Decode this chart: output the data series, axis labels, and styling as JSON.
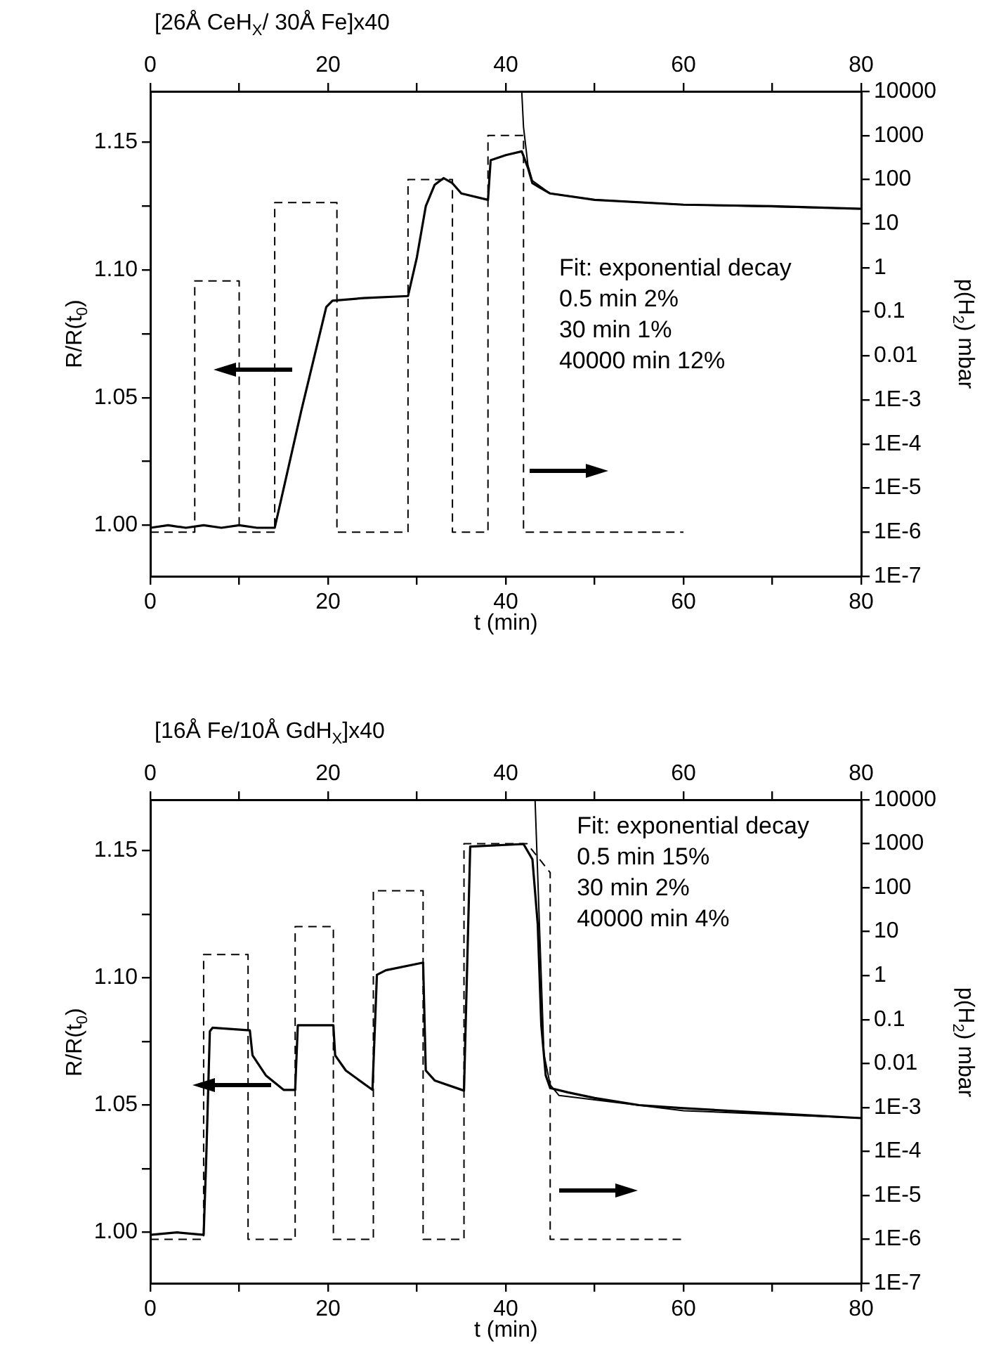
{
  "chart_data": [
    {
      "type": "line",
      "title": "[26Å CeH$_{X}$/ 30Å Fe]x40",
      "xlabel": "t (min)",
      "ylabel": "R/R(t$_{0}$)",
      "y2label": "p(H$_{2}$) mbar",
      "annotations": [
        "Fit: exponential decay",
        "0.5 min 2%",
        "30 min 1%",
        "40000 min 12%"
      ],
      "xlim": [
        0,
        80
      ],
      "xticks": [
        0,
        {
          "value": 10,
          "label": null
        },
        20,
        {
          "value": 30,
          "label": null
        },
        40,
        {
          "value": 50,
          "label": null
        },
        60,
        {
          "value": 70,
          "label": null
        },
        80
      ],
      "x2lim": [
        0,
        80
      ],
      "x2ticks": [
        0,
        {
          "value": 10,
          "label": null
        },
        20,
        {
          "value": 30,
          "label": null
        },
        40,
        {
          "value": 50,
          "label": null
        },
        60,
        {
          "value": 70,
          "label": null
        },
        80
      ],
      "ylim": [
        0.98,
        1.17
      ],
      "yticks": [
        {
          "value": 1,
          "label": "1.00"
        },
        {
          "value": 1.025,
          "label": null
        },
        {
          "value": 1.05,
          "label": "1.05"
        },
        {
          "value": 1.075,
          "label": null
        },
        {
          "value": 1.1,
          "label": "1.10"
        },
        {
          "value": 1.125,
          "label": null
        },
        {
          "value": 1.15,
          "label": "1.15"
        }
      ],
      "y2lim": [
        1e-07,
        10000
      ],
      "y2ticks": [
        {
          "value": 1e-07,
          "label": "1E-7"
        },
        {
          "value": 1e-06,
          "label": "1E-6"
        },
        {
          "value": 1e-05,
          "label": "1E-5"
        },
        {
          "value": 0.0001,
          "label": "1E-4"
        },
        {
          "value": 0.001,
          "label": "1E-3"
        },
        0.01,
        0.1,
        1,
        10,
        100,
        1000,
        10000
      ],
      "log": "y2",
      "grid": false,
      "legend": false,
      "marker": "none",
      "series": [
        {
          "color": "#000000",
          "line_style": "solid",
          "x": [
            0,
            2,
            4,
            6,
            8,
            10,
            12,
            14,
            17,
            19.8,
            20.5,
            24,
            29,
            30,
            31,
            32,
            33,
            34,
            35,
            38,
            38.3,
            40,
            41.8,
            42.5,
            43,
            45,
            50,
            60,
            70,
            80
          ],
          "values": [
            0.999,
            1.0,
            0.999,
            1.0,
            0.999,
            1.0,
            0.999,
            0.999,
            1.045,
            1.0855,
            1.088,
            1.089,
            1.0898,
            1.105,
            1.125,
            1.1334,
            1.136,
            1.134,
            1.13,
            1.1275,
            1.143,
            1.145,
            1.1465,
            1.14,
            1.134,
            1.13,
            1.1275,
            1.1256,
            1.125,
            1.124
          ]
        },
        {
          "color": "#000000",
          "line_style": "solid",
          "x": [
            41.8,
            42,
            42.5,
            43,
            45,
            50,
            60,
            80
          ],
          "values": [
            1.17,
            1.156,
            1.141,
            1.135,
            1.13,
            1.1275,
            1.1256,
            1.124
          ]
        },
        {
          "color": "#000000",
          "line_style": "dashed",
          "axis": "y2",
          "x": [
            0,
            5,
            5,
            10,
            10,
            14,
            14,
            21,
            21,
            29,
            29,
            34,
            34,
            38,
            38,
            42,
            42,
            60
          ],
          "values": [
            1e-06,
            1e-06,
            0.5,
            0.5,
            1e-06,
            1e-06,
            30,
            30,
            1e-06,
            1e-06,
            100,
            100,
            1e-06,
            1e-06,
            1000,
            1000,
            1e-06,
            1e-06
          ]
        }
      ]
    },
    {
      "type": "line",
      "title": "[16Å Fe/10Å GdH$_{X}$]x40",
      "xlabel": "t (min)",
      "ylabel": "R/R(t$_{0}$)",
      "y2label": "p(H$_{2}$) mbar",
      "annotations": [
        "Fit: exponential decay",
        "0.5 min 15%",
        "30 min 2%",
        "40000 min 4%"
      ],
      "xlim": [
        0,
        80
      ],
      "xticks": [
        0,
        {
          "value": 10,
          "label": null
        },
        20,
        {
          "value": 30,
          "label": null
        },
        40,
        {
          "value": 50,
          "label": null
        },
        60,
        {
          "value": 70,
          "label": null
        },
        80
      ],
      "x2lim": [
        0,
        80
      ],
      "x2ticks": [
        0,
        {
          "value": 10,
          "label": null
        },
        20,
        {
          "value": 30,
          "label": null
        },
        40,
        {
          "value": 50,
          "label": null
        },
        60,
        {
          "value": 70,
          "label": null
        },
        80
      ],
      "ylim": [
        0.98,
        1.17
      ],
      "yticks": [
        {
          "value": 1,
          "label": "1.00"
        },
        {
          "value": 1.025,
          "label": null
        },
        {
          "value": 1.05,
          "label": "1.05"
        },
        {
          "value": 1.075,
          "label": null
        },
        {
          "value": 1.1,
          "label": "1.10"
        },
        {
          "value": 1.125,
          "label": null
        },
        {
          "value": 1.15,
          "label": "1.15"
        }
      ],
      "y2lim": [
        1e-07,
        10000
      ],
      "y2ticks": [
        {
          "value": 1e-07,
          "label": "1E-7"
        },
        {
          "value": 1e-06,
          "label": "1E-6"
        },
        {
          "value": 1e-05,
          "label": "1E-5"
        },
        {
          "value": 0.0001,
          "label": "1E-4"
        },
        {
          "value": 0.001,
          "label": "1E-3"
        },
        0.01,
        0.1,
        1,
        10,
        100,
        1000,
        10000
      ],
      "log": "y2",
      "grid": false,
      "legend": false,
      "marker": "none",
      "series": [
        {
          "color": "#000000",
          "line_style": "solid",
          "x": [
            0,
            3,
            6,
            6.3,
            6.7,
            7,
            11.2,
            11.5,
            13,
            15,
            16.3,
            16.6,
            20.6,
            20.8,
            22,
            25,
            25.5,
            26.5,
            30.7,
            31,
            32,
            35.3,
            36,
            42,
            43,
            43.6,
            44,
            44.5,
            45,
            47,
            50,
            55,
            60,
            70,
            80
          ],
          "values": [
            0.999,
            1.0,
            0.999,
            1.03,
            1.079,
            1.0804,
            1.0794,
            1.0696,
            1.0617,
            1.056,
            1.056,
            1.0814,
            1.0814,
            1.0696,
            1.0636,
            1.056,
            1.1012,
            1.103,
            1.106,
            1.0636,
            1.0597,
            1.0557,
            1.1516,
            1.1526,
            1.1466,
            1.121,
            1.0814,
            1.0617,
            1.0567,
            1.055,
            1.0528,
            1.05,
            1.0488,
            1.0468,
            1.0449
          ]
        },
        {
          "color": "#000000",
          "line_style": "solid",
          "x": [
            43.3,
            43.8,
            44.3,
            45,
            46,
            60,
            80
          ],
          "values": [
            1.17,
            1.12,
            1.07,
            1.058,
            1.0538,
            1.0478,
            1.0449
          ]
        },
        {
          "color": "#000000",
          "line_style": "dashed",
          "axis": "y2",
          "x": [
            0,
            6,
            6,
            11,
            11,
            16.3,
            16.3,
            20.6,
            20.6,
            25.1,
            25.1,
            30.7,
            30.7,
            35.3,
            35.3,
            42.4,
            45,
            45,
            60
          ],
          "values": [
            1e-06,
            1e-06,
            3,
            3,
            1e-06,
            1e-06,
            13,
            13,
            1e-06,
            1e-06,
            85,
            85,
            1e-06,
            1e-06,
            1000,
            1000,
            220,
            1e-06,
            1e-06
          ]
        }
      ]
    }
  ]
}
